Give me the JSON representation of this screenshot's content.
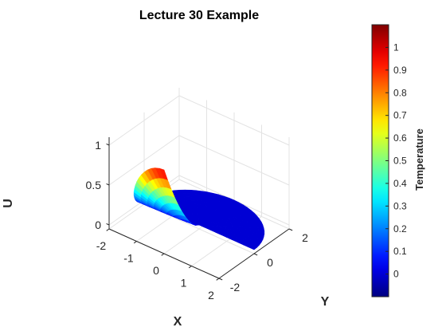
{
  "chart_data": {
    "type": "surface3d",
    "title": "Lecture 30 Example",
    "xlabel": "X",
    "ylabel": "Y",
    "zlabel": "U",
    "xlim": [
      -2,
      2
    ],
    "ylim": [
      -2,
      2
    ],
    "zlim": [
      -0.05,
      1.1
    ],
    "xticks": [
      "-2",
      "-1",
      "0",
      "1",
      "2"
    ],
    "yticks": [
      "-2",
      "0",
      "2"
    ],
    "zticks": [
      "0",
      "0.5",
      "1"
    ],
    "domain": "disk of radius 2, angular range 0 to 3*pi/2",
    "colormap": "jet",
    "colorbar": {
      "label": "Temperature",
      "range": [
        -0.1,
        1.1
      ],
      "ticks": [
        "0",
        "0.1",
        "0.2",
        "0.3",
        "0.4",
        "0.5",
        "0.6",
        "0.7",
        "0.8",
        "0.9",
        "1"
      ]
    },
    "surface_profile": [
      {
        "theta_deg": 0,
        "u_rim": 0.0
      },
      {
        "theta_deg": 90,
        "u_rim": 0.0
      },
      {
        "theta_deg": 180,
        "u_rim": 0.0
      },
      {
        "theta_deg": 270,
        "u_rim": 1.0
      }
    ],
    "grid": true
  }
}
